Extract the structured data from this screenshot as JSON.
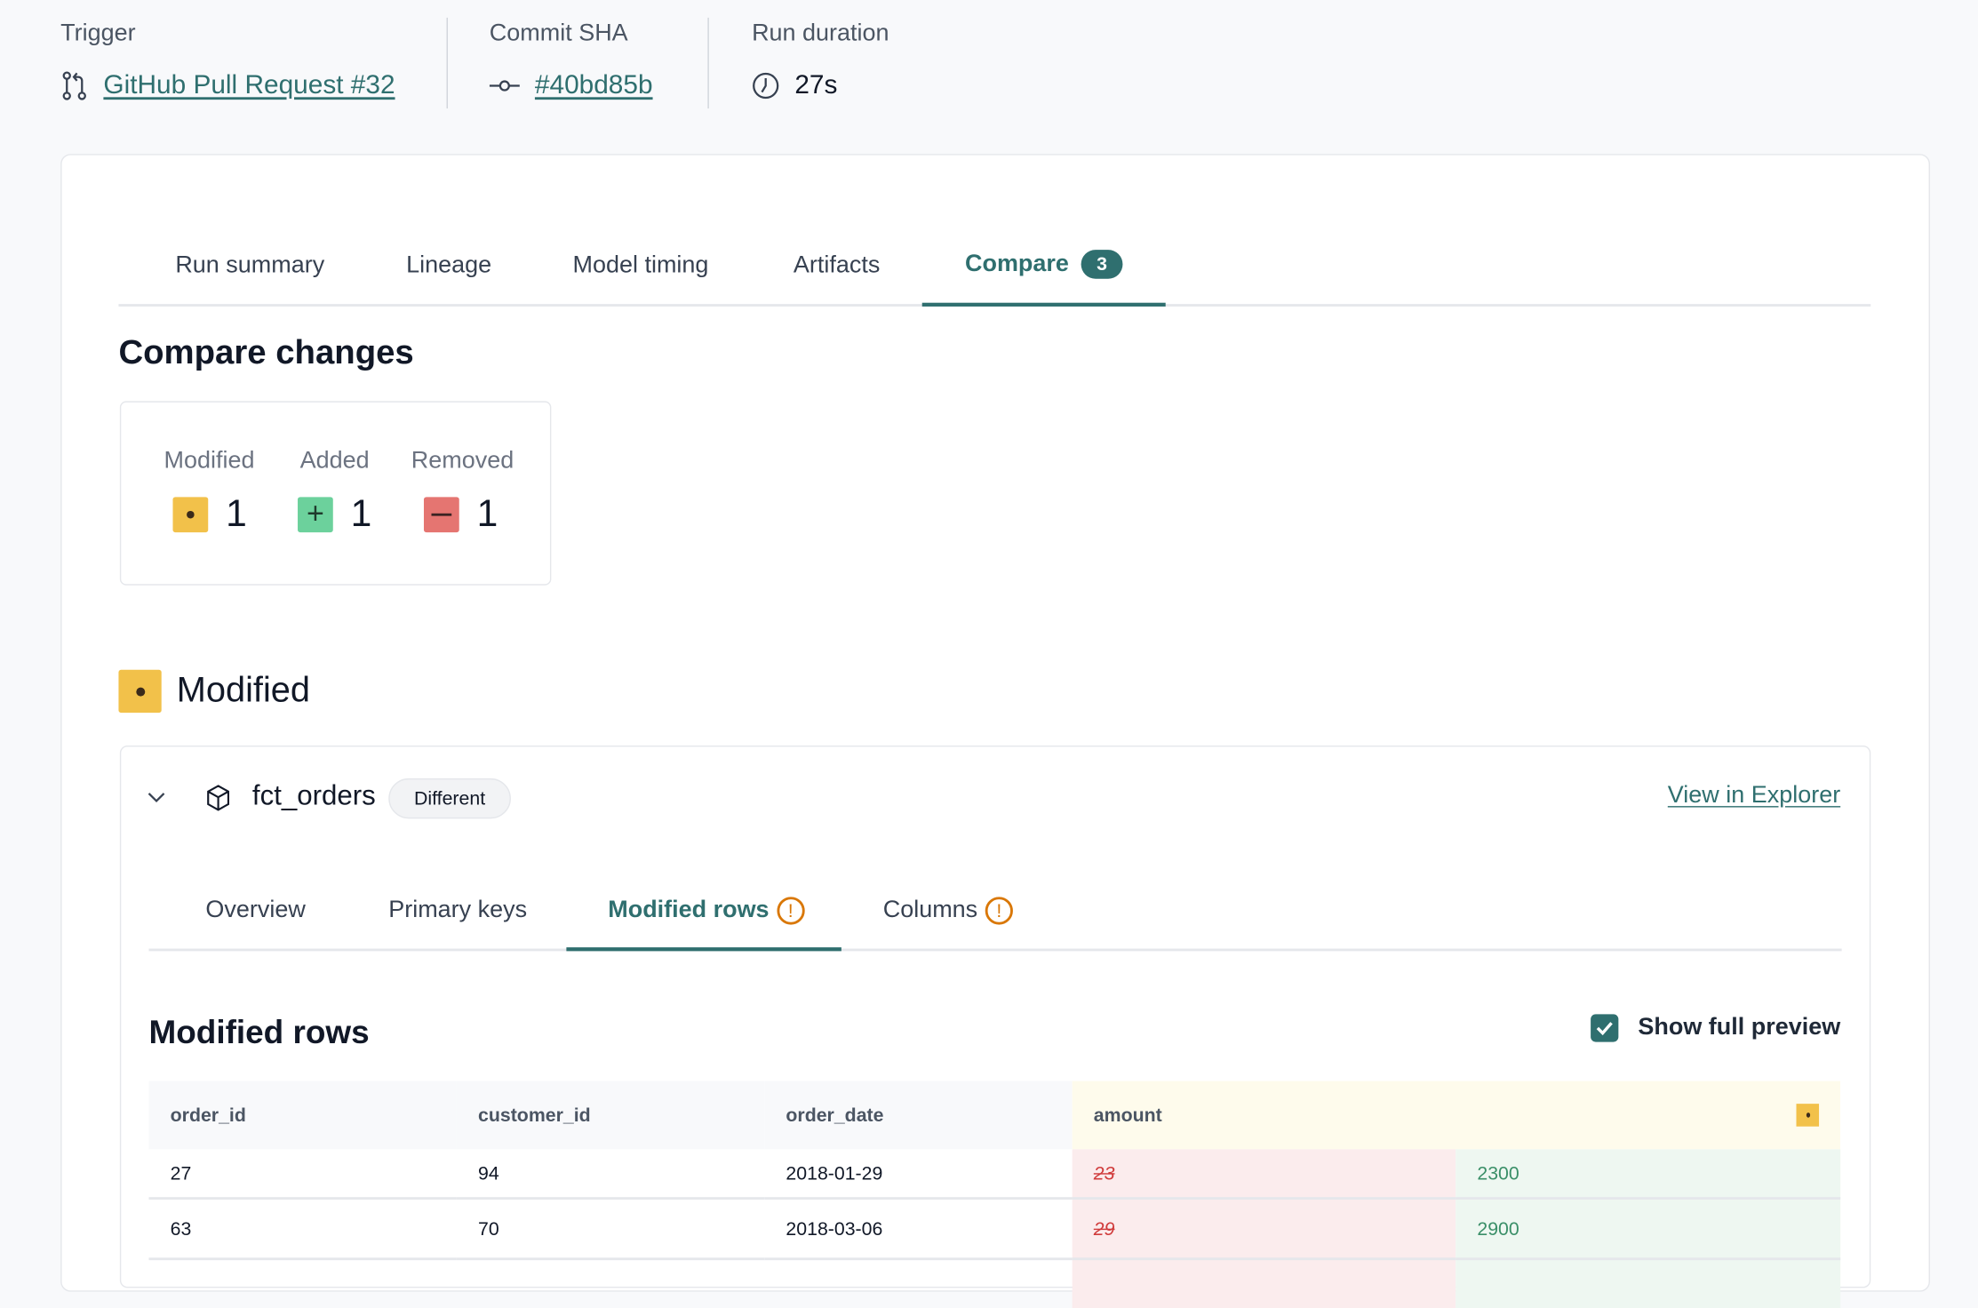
{
  "meta": {
    "trigger_label": "Trigger",
    "trigger_value": "GitHub Pull Request #32",
    "commit_label": "Commit SHA",
    "commit_value": "#40bd85b",
    "duration_label": "Run duration",
    "duration_value": "27s"
  },
  "tabs": [
    {
      "label": "Run summary"
    },
    {
      "label": "Lineage"
    },
    {
      "label": "Model timing"
    },
    {
      "label": "Artifacts"
    },
    {
      "label": "Compare",
      "badge": "3",
      "active": true
    }
  ],
  "compare": {
    "title": "Compare changes",
    "summary": [
      {
        "label": "Modified",
        "count": "1",
        "icon": "dot-icon",
        "color": "#f2c14a"
      },
      {
        "label": "Added",
        "count": "1",
        "icon": "plus-icon",
        "color": "#6cd19c"
      },
      {
        "label": "Removed",
        "count": "1",
        "icon": "minus-icon",
        "color": "#e57571"
      }
    ],
    "section_title": "Modified"
  },
  "model": {
    "name": "fct_orders",
    "status": "Different",
    "view_link": "View in Explorer",
    "subtabs": [
      {
        "label": "Overview"
      },
      {
        "label": "Primary keys"
      },
      {
        "label": "Modified rows",
        "warning": true,
        "active": true
      },
      {
        "label": "Columns",
        "warning": true
      }
    ],
    "panel_title": "Modified rows",
    "show_full_preview_label": "Show full preview",
    "show_full_preview": true,
    "table": {
      "columns": [
        "order_id",
        "customer_id",
        "order_date",
        "amount"
      ],
      "rows": [
        {
          "order_id": "27",
          "customer_id": "94",
          "order_date": "2018-01-29",
          "amount_old": "23",
          "amount_new": "2300"
        },
        {
          "order_id": "63",
          "customer_id": "70",
          "order_date": "2018-03-06",
          "amount_old": "29",
          "amount_new": "2900"
        }
      ]
    }
  },
  "colors": {
    "accent": "#2f6f6f",
    "modified": "#f2c14a",
    "added": "#6cd19c",
    "removed": "#e57571",
    "warning": "#d97706"
  }
}
